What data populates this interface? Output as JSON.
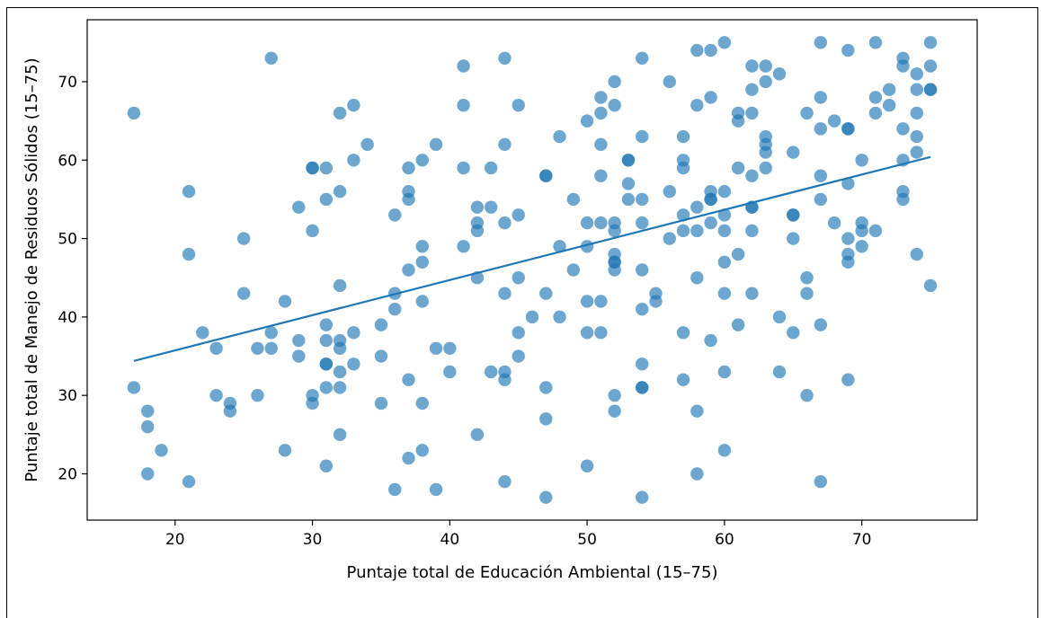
{
  "chart_data": {
    "type": "scatter",
    "title": "",
    "xlabel": "Puntaje total de Educación Ambiental (15–75)",
    "ylabel": "Puntaje total de Manejo de Residuos Sólidos (15–75)",
    "xlim": [
      13.6,
      78.4
    ],
    "ylim": [
      14.1,
      77.9
    ],
    "xticks": [
      20,
      30,
      40,
      50,
      60,
      70
    ],
    "yticks": [
      20,
      30,
      40,
      50,
      60,
      70
    ],
    "grid": false,
    "point_color": "#1f77b4",
    "line_color": "#1f77b4",
    "trendline": {
      "x": [
        17,
        75
      ],
      "y": [
        34.4,
        60.4
      ]
    },
    "points": [
      [
        17,
        66
      ],
      [
        17,
        31
      ],
      [
        18,
        28
      ],
      [
        18,
        26
      ],
      [
        18,
        20
      ],
      [
        19,
        23
      ],
      [
        21,
        56
      ],
      [
        21,
        48
      ],
      [
        21,
        19
      ],
      [
        22,
        38
      ],
      [
        23,
        36
      ],
      [
        23,
        30
      ],
      [
        24,
        29
      ],
      [
        24,
        28
      ],
      [
        25,
        50
      ],
      [
        25,
        43
      ],
      [
        26,
        36
      ],
      [
        26,
        30
      ],
      [
        27,
        73
      ],
      [
        27,
        38
      ],
      [
        27,
        36
      ],
      [
        28,
        42
      ],
      [
        28,
        23
      ],
      [
        29,
        54
      ],
      [
        29,
        37
      ],
      [
        29,
        35
      ],
      [
        30,
        59
      ],
      [
        30,
        59
      ],
      [
        30,
        51
      ],
      [
        30,
        30
      ],
      [
        30,
        29
      ],
      [
        31,
        59
      ],
      [
        31,
        55
      ],
      [
        31,
        39
      ],
      [
        31,
        37
      ],
      [
        31,
        34
      ],
      [
        31,
        34
      ],
      [
        31,
        31
      ],
      [
        31,
        21
      ],
      [
        32,
        66
      ],
      [
        32,
        56
      ],
      [
        32,
        44
      ],
      [
        32,
        37
      ],
      [
        32,
        36
      ],
      [
        32,
        33
      ],
      [
        32,
        31
      ],
      [
        32,
        25
      ],
      [
        33,
        67
      ],
      [
        33,
        60
      ],
      [
        33,
        38
      ],
      [
        33,
        34
      ],
      [
        34,
        62
      ],
      [
        35,
        39
      ],
      [
        35,
        35
      ],
      [
        35,
        29
      ],
      [
        36,
        53
      ],
      [
        36,
        43
      ],
      [
        36,
        41
      ],
      [
        36,
        18
      ],
      [
        37,
        59
      ],
      [
        37,
        56
      ],
      [
        37,
        55
      ],
      [
        37,
        46
      ],
      [
        37,
        32
      ],
      [
        37,
        22
      ],
      [
        38,
        60
      ],
      [
        38,
        49
      ],
      [
        38,
        47
      ],
      [
        38,
        42
      ],
      [
        38,
        29
      ],
      [
        38,
        23
      ],
      [
        39,
        62
      ],
      [
        39,
        36
      ],
      [
        39,
        18
      ],
      [
        40,
        36
      ],
      [
        40,
        33
      ],
      [
        41,
        72
      ],
      [
        41,
        67
      ],
      [
        41,
        59
      ],
      [
        41,
        49
      ],
      [
        42,
        54
      ],
      [
        42,
        52
      ],
      [
        42,
        51
      ],
      [
        42,
        45
      ],
      [
        42,
        25
      ],
      [
        43,
        59
      ],
      [
        43,
        54
      ],
      [
        43,
        33
      ],
      [
        44,
        73
      ],
      [
        44,
        62
      ],
      [
        44,
        52
      ],
      [
        44,
        43
      ],
      [
        44,
        33
      ],
      [
        44,
        32
      ],
      [
        44,
        19
      ],
      [
        45,
        67
      ],
      [
        45,
        53
      ],
      [
        45,
        45
      ],
      [
        45,
        38
      ],
      [
        45,
        35
      ],
      [
        46,
        40
      ],
      [
        47,
        58
      ],
      [
        47,
        58
      ],
      [
        47,
        43
      ],
      [
        47,
        31
      ],
      [
        47,
        27
      ],
      [
        47,
        17
      ],
      [
        48,
        63
      ],
      [
        48,
        49
      ],
      [
        48,
        40
      ],
      [
        49,
        55
      ],
      [
        49,
        46
      ],
      [
        50,
        65
      ],
      [
        50,
        52
      ],
      [
        50,
        49
      ],
      [
        50,
        42
      ],
      [
        50,
        38
      ],
      [
        50,
        21
      ],
      [
        51,
        68
      ],
      [
        51,
        66
      ],
      [
        51,
        62
      ],
      [
        51,
        58
      ],
      [
        51,
        52
      ],
      [
        51,
        42
      ],
      [
        51,
        38
      ],
      [
        52,
        70
      ],
      [
        52,
        67
      ],
      [
        52,
        52
      ],
      [
        52,
        51
      ],
      [
        52,
        48
      ],
      [
        52,
        47
      ],
      [
        52,
        47
      ],
      [
        52,
        46
      ],
      [
        52,
        30
      ],
      [
        52,
        28
      ],
      [
        53,
        60
      ],
      [
        53,
        60
      ],
      [
        53,
        57
      ],
      [
        53,
        55
      ],
      [
        54,
        73
      ],
      [
        54,
        63
      ],
      [
        54,
        55
      ],
      [
        54,
        52
      ],
      [
        54,
        46
      ],
      [
        54,
        41
      ],
      [
        54,
        34
      ],
      [
        54,
        31
      ],
      [
        54,
        31
      ],
      [
        54,
        17
      ],
      [
        55,
        43
      ],
      [
        55,
        42
      ],
      [
        56,
        70
      ],
      [
        56,
        56
      ],
      [
        56,
        50
      ],
      [
        57,
        63
      ],
      [
        57,
        60
      ],
      [
        57,
        59
      ],
      [
        57,
        53
      ],
      [
        57,
        51
      ],
      [
        57,
        38
      ],
      [
        57,
        32
      ],
      [
        58,
        74
      ],
      [
        58,
        67
      ],
      [
        58,
        54
      ],
      [
        58,
        51
      ],
      [
        58,
        45
      ],
      [
        58,
        28
      ],
      [
        58,
        20
      ],
      [
        59,
        74
      ],
      [
        59,
        68
      ],
      [
        59,
        56
      ],
      [
        59,
        55
      ],
      [
        59,
        55
      ],
      [
        59,
        52
      ],
      [
        59,
        37
      ],
      [
        60,
        75
      ],
      [
        60,
        56
      ],
      [
        60,
        53
      ],
      [
        60,
        51
      ],
      [
        60,
        47
      ],
      [
        60,
        43
      ],
      [
        60,
        33
      ],
      [
        60,
        23
      ],
      [
        61,
        66
      ],
      [
        61,
        65
      ],
      [
        61,
        59
      ],
      [
        61,
        48
      ],
      [
        61,
        39
      ],
      [
        62,
        72
      ],
      [
        62,
        69
      ],
      [
        62,
        66
      ],
      [
        62,
        58
      ],
      [
        62,
        54
      ],
      [
        62,
        54
      ],
      [
        62,
        51
      ],
      [
        62,
        43
      ],
      [
        63,
        72
      ],
      [
        63,
        70
      ],
      [
        63,
        63
      ],
      [
        63,
        62
      ],
      [
        63,
        61
      ],
      [
        63,
        59
      ],
      [
        64,
        71
      ],
      [
        64,
        40
      ],
      [
        64,
        33
      ],
      [
        65,
        61
      ],
      [
        65,
        53
      ],
      [
        65,
        53
      ],
      [
        65,
        50
      ],
      [
        65,
        38
      ],
      [
        66,
        66
      ],
      [
        66,
        45
      ],
      [
        66,
        43
      ],
      [
        66,
        30
      ],
      [
        67,
        75
      ],
      [
        67,
        68
      ],
      [
        67,
        64
      ],
      [
        67,
        58
      ],
      [
        67,
        55
      ],
      [
        67,
        39
      ],
      [
        67,
        19
      ],
      [
        68,
        65
      ],
      [
        68,
        52
      ],
      [
        69,
        74
      ],
      [
        69,
        64
      ],
      [
        69,
        64
      ],
      [
        69,
        57
      ],
      [
        69,
        50
      ],
      [
        69,
        48
      ],
      [
        69,
        47
      ],
      [
        69,
        32
      ],
      [
        70,
        60
      ],
      [
        70,
        52
      ],
      [
        70,
        51
      ],
      [
        70,
        49
      ],
      [
        71,
        75
      ],
      [
        71,
        68
      ],
      [
        71,
        66
      ],
      [
        71,
        51
      ],
      [
        72,
        69
      ],
      [
        72,
        67
      ],
      [
        73,
        73
      ],
      [
        73,
        72
      ],
      [
        73,
        64
      ],
      [
        73,
        60
      ],
      [
        73,
        56
      ],
      [
        73,
        55
      ],
      [
        74,
        71
      ],
      [
        74,
        69
      ],
      [
        74,
        66
      ],
      [
        74,
        63
      ],
      [
        74,
        61
      ],
      [
        74,
        48
      ],
      [
        75,
        75
      ],
      [
        75,
        72
      ],
      [
        75,
        69
      ],
      [
        75,
        69
      ],
      [
        75,
        44
      ]
    ]
  }
}
